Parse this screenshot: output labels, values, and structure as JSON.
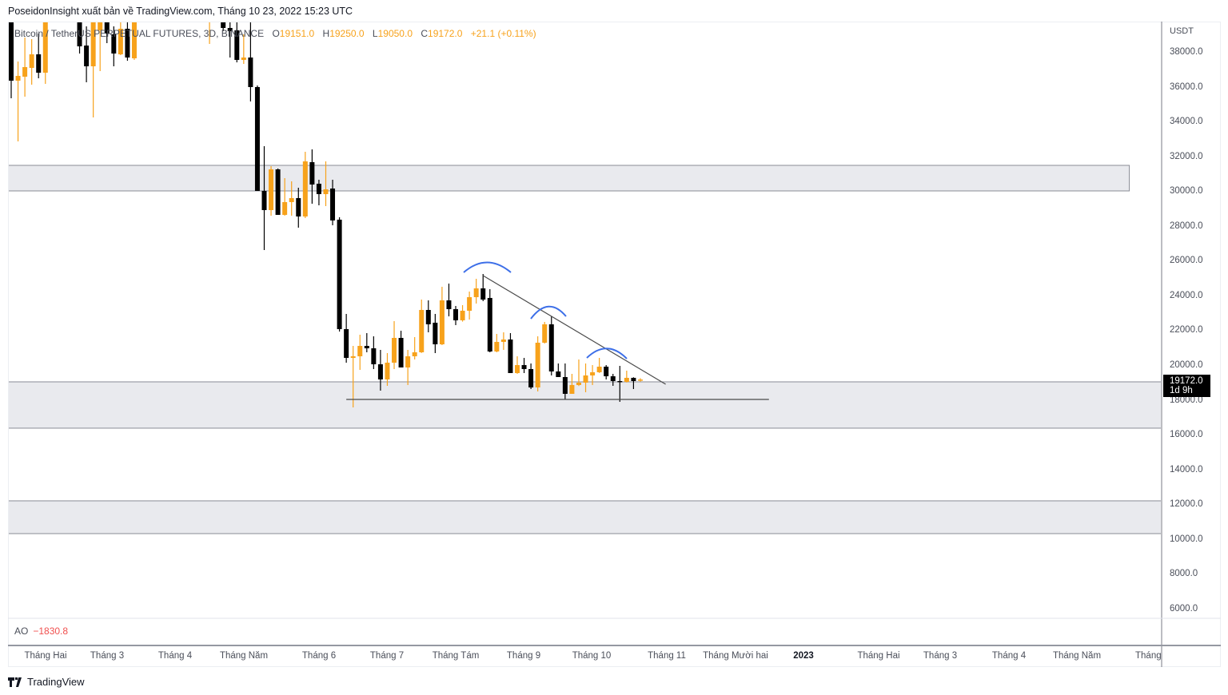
{
  "publish_line": "PoseidonInsight xuất bản về TradingView.com, Tháng 10 23, 2022 15:23 UTC",
  "legend": {
    "symbol": "Bitcoin / TetherUS PERPETUAL FUTURES, 3D, BINANCE",
    "open_key": "O",
    "open": "19151.0",
    "high_key": "H",
    "high": "19250.0",
    "low_key": "L",
    "low": "19050.0",
    "close_key": "C",
    "close": "19172.0",
    "change": "+21.1 (+0.11%)"
  },
  "indicator": {
    "name": "AO",
    "value": "−1830.8"
  },
  "last_price": {
    "price": "19172.0",
    "countdown": "1d 9h"
  },
  "currency": "USDT",
  "watermark": "TradingView",
  "colors": {
    "up": "#f7a21b",
    "down": "#000000",
    "zone": "#e9eaee",
    "arc": "#3d6fe8",
    "ao_negative": "#f0504f"
  },
  "chart_data": {
    "type": "candlestick",
    "title": "Bitcoin / TetherUS PERPETUAL FUTURES, 3D, BINANCE",
    "ylabel": "USDT",
    "ylim": [
      6000,
      39745
    ],
    "price_ticks": [
      38000,
      36000,
      34000,
      32000,
      30000,
      28000,
      26000,
      24000,
      22000,
      20000,
      18000,
      16000,
      14000,
      12000,
      10000,
      8000,
      6000
    ],
    "time_ticks": [
      "Tháng Hai",
      "Tháng 3",
      "Tháng 4",
      "Tháng Năm",
      "Tháng 6",
      "Tháng 7",
      "Tháng Tám",
      "Tháng 9",
      "Tháng 10",
      "Tháng 11",
      "Tháng Mười hai",
      "2023",
      "Tháng Hai",
      "Tháng 3",
      "Tháng 4",
      "Tháng Năm",
      "Tháng"
    ],
    "candles_ohlc": [
      [
        40200,
        40500,
        35337,
        36348
      ],
      [
        36348,
        37449,
        32858,
        36623
      ],
      [
        36577,
        38826,
        35429,
        37128
      ],
      [
        37082,
        38735,
        36118,
        37862
      ],
      [
        37862,
        39056,
        36485,
        36806
      ],
      [
        36806,
        40500,
        36164,
        40200
      ],
      null,
      null,
      null,
      null,
      [
        40300,
        40600,
        37908,
        38321
      ],
      [
        38367,
        39470,
        36256,
        37174
      ],
      [
        37174,
        40500,
        34236,
        40200
      ],
      [
        39240,
        40500,
        36898,
        40200
      ],
      [
        40000,
        40300,
        38505,
        39056
      ],
      [
        39010,
        39470,
        37174,
        37908
      ],
      [
        37862,
        39800,
        37816,
        39331
      ],
      [
        39331,
        39800,
        37495,
        37679
      ],
      [
        37633,
        40500,
        37541,
        40200
      ],
      null,
      null,
      null,
      null,
      null,
      null,
      null,
      null,
      null,
      null,
      [
        40200,
        40800,
        38459,
        40500
      ],
      null,
      [
        40000,
        40300,
        39194,
        39377
      ],
      [
        39377,
        39745,
        37679,
        39194
      ],
      [
        39240,
        39800,
        37400,
        37541
      ],
      [
        37541,
        39010,
        37311,
        37679
      ],
      [
        37679,
        39800,
        35154,
        35980
      ],
      [
        35980,
        36072,
        30012,
        30012
      ],
      [
        30012,
        32583,
        26614,
        28910
      ],
      [
        28910,
        31435,
        28589,
        31251
      ],
      [
        31251,
        31300,
        28635,
        28635
      ],
      [
        28635,
        30746,
        28589,
        29369
      ],
      [
        29369,
        30563,
        28589,
        29598
      ],
      [
        29598,
        30195,
        27900,
        28543
      ],
      [
        28543,
        32261,
        28450,
        31710
      ],
      [
        31664,
        32399,
        29277,
        30379
      ],
      [
        30425,
        30654,
        29185,
        29828
      ],
      [
        29828,
        31710,
        29139,
        30103
      ],
      [
        30149,
        30654,
        28038,
        28313
      ],
      [
        28359,
        28497,
        21931,
        22069
      ],
      [
        22069,
        22942,
        20140,
        20415
      ],
      [
        20415,
        21104,
        17570,
        20507
      ],
      [
        20507,
        21747,
        19727,
        21104
      ],
      [
        21104,
        21839,
        20737,
        20967
      ],
      [
        20967,
        21656,
        19773,
        20048
      ],
      [
        20048,
        20875,
        18534,
        19177
      ],
      [
        19177,
        20691,
        18810,
        20140
      ],
      [
        20140,
        22529,
        19773,
        21564
      ],
      [
        21564,
        21977,
        19865,
        19865
      ],
      [
        19865,
        20875,
        18856,
        20507
      ],
      [
        20507,
        21610,
        20324,
        20737
      ],
      [
        20737,
        23768,
        20700,
        23171
      ],
      [
        23171,
        23722,
        21885,
        22345
      ],
      [
        22437,
        22942,
        20691,
        21196
      ],
      [
        21196,
        24503,
        21150,
        23722
      ],
      [
        23722,
        24687,
        22804,
        23217
      ],
      [
        23217,
        23400,
        22299,
        22575
      ],
      [
        22575,
        23446,
        22500,
        23125
      ],
      [
        23125,
        24228,
        22620,
        23906
      ],
      [
        23906,
        24962,
        23538,
        24411
      ],
      [
        24411,
        25236,
        23676,
        23768
      ],
      [
        23860,
        24365,
        20737,
        20783
      ],
      [
        20783,
        21793,
        20737,
        21334
      ],
      [
        21334,
        21885,
        20875,
        21472
      ],
      [
        21472,
        21839,
        19544,
        19544
      ],
      [
        19544,
        20507,
        19500,
        20002
      ],
      [
        20002,
        20415,
        19544,
        19773
      ],
      [
        19773,
        20094,
        18626,
        18718
      ],
      [
        18718,
        21656,
        18488,
        21288
      ],
      [
        21288,
        22483,
        21242,
        22345
      ],
      [
        22345,
        22804,
        19406,
        19636
      ],
      [
        19636,
        20094,
        19314,
        19314
      ],
      [
        19314,
        20094,
        18029,
        18350
      ],
      [
        18350,
        19498,
        18350,
        18856
      ],
      [
        18856,
        20324,
        18800,
        18993
      ],
      [
        18993,
        20094,
        18442,
        19406
      ],
      [
        19406,
        20002,
        18856,
        19590
      ],
      [
        19590,
        20415,
        19550,
        19911
      ],
      [
        19911,
        20002,
        19177,
        19360
      ],
      [
        19360,
        19498,
        18810,
        19085
      ],
      [
        19085,
        19957,
        17891,
        19039
      ],
      [
        19039,
        19681,
        19000,
        19269
      ],
      [
        19269,
        19300,
        18626,
        19085
      ],
      [
        19151,
        19250,
        19050,
        19172
      ]
    ],
    "zones": [
      {
        "from": 30012,
        "to": 31481,
        "end_index": 163.5
      },
      {
        "from": 16377,
        "to": 19039,
        "end_index": null
      },
      {
        "from": 10316,
        "to": 12200,
        "end_index": null
      }
    ],
    "trendline": {
      "start": [
        69,
        25145
      ],
      "end": [
        95.7,
        18901
      ]
    },
    "support_line": {
      "start": [
        49,
        18029
      ],
      "end": [
        110.8,
        18029
      ],
      "price": 18029
    }
  }
}
